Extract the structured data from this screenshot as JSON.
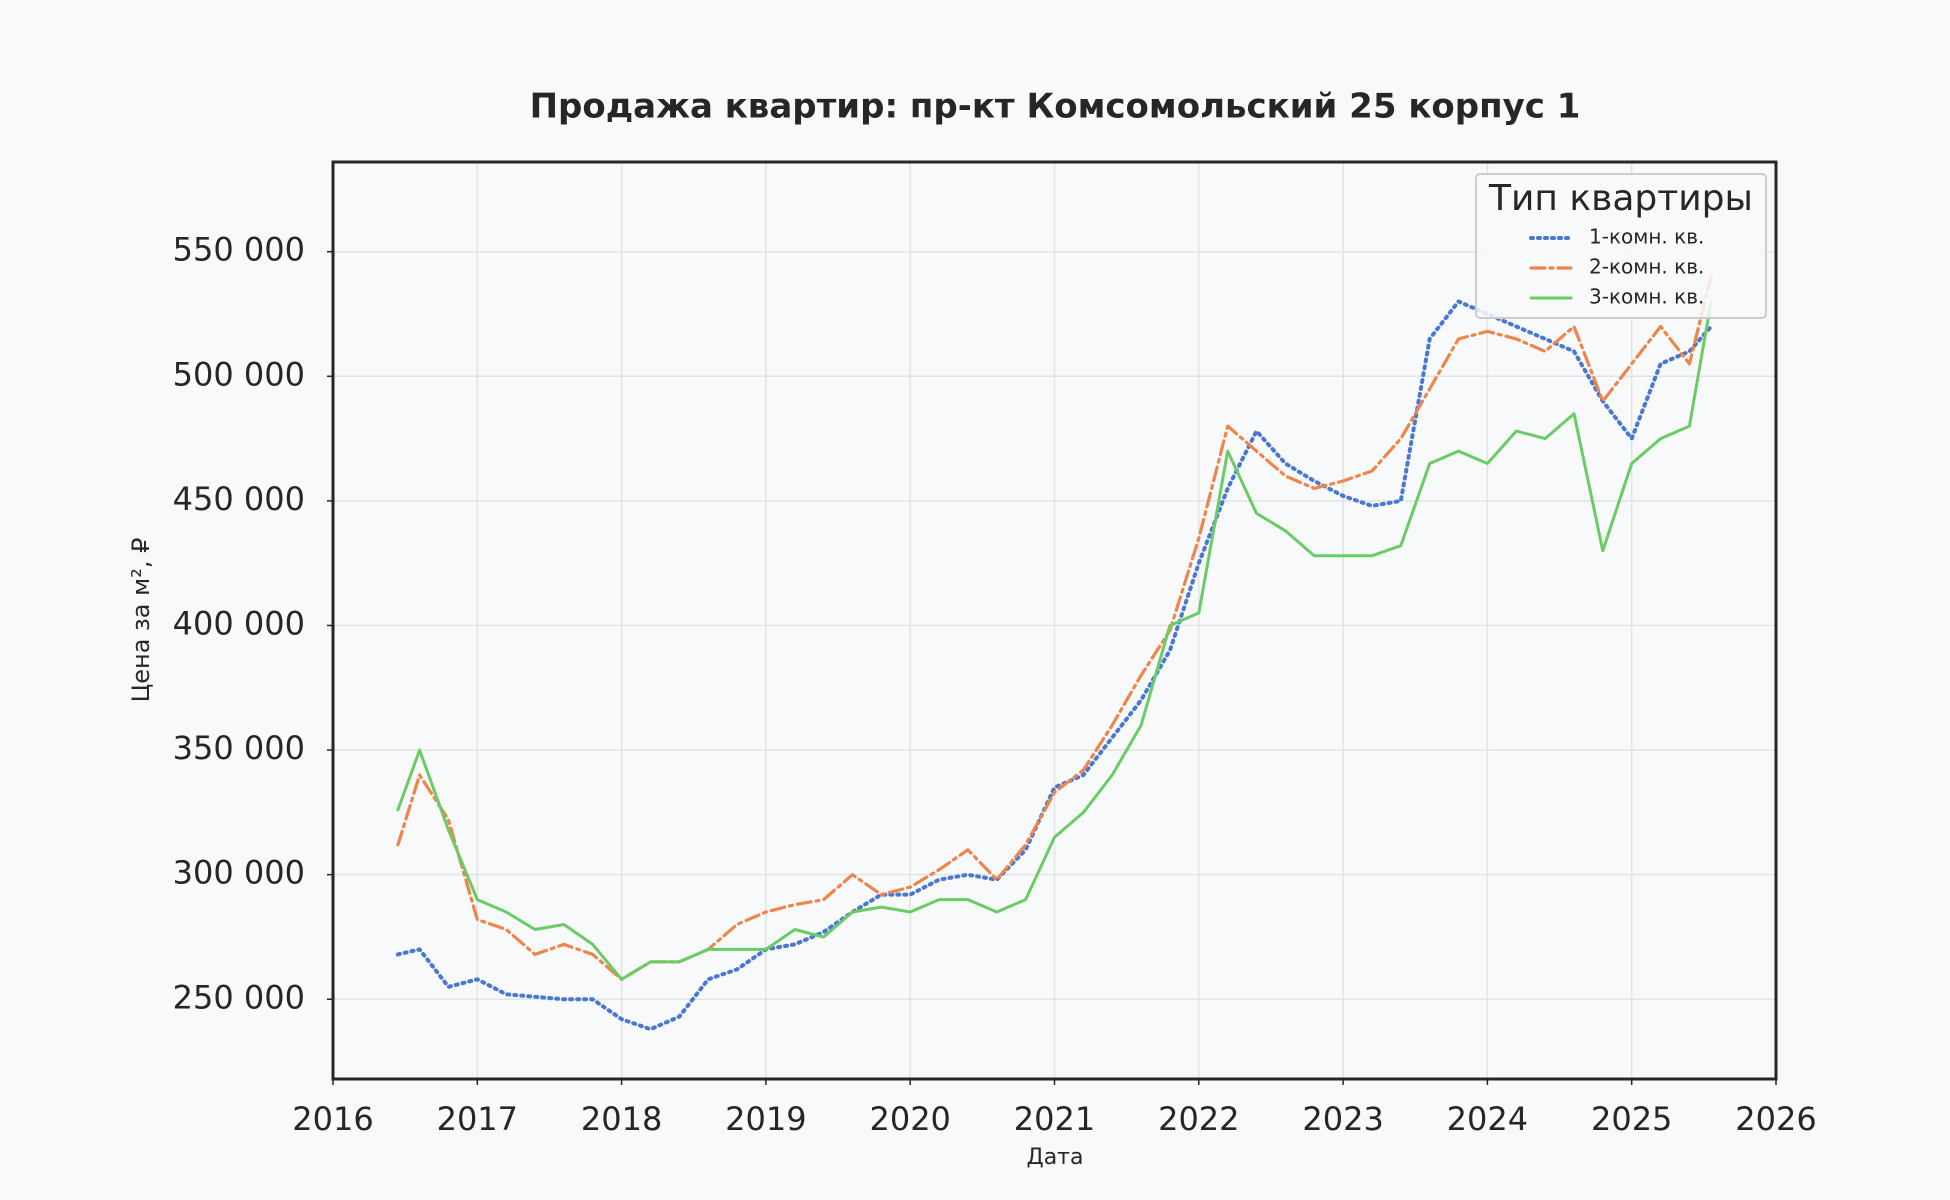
{
  "chart_data": {
    "type": "line",
    "title": "Продажа квартир: пр-кт Комсомольский 25 корпус 1",
    "x_label": "Дата",
    "y_label": "Цена за м², ₽",
    "legend_title": "Тип квартиры",
    "legend": "upper right",
    "grid": true,
    "xlim": [
      2016,
      2026
    ],
    "xticks": [
      2016,
      2017,
      2018,
      2019,
      2020,
      2021,
      2022,
      2023,
      2024,
      2025,
      2026
    ],
    "ylim": [
      218000,
      586000
    ],
    "yticks": [
      {
        "value": 250000,
        "label": "250 000"
      },
      {
        "value": 300000,
        "label": "300 000"
      },
      {
        "value": 350000,
        "label": "350 000"
      },
      {
        "value": 400000,
        "label": "400 000"
      },
      {
        "value": 450000,
        "label": "450 000"
      },
      {
        "value": 500000,
        "label": "500 000"
      },
      {
        "value": 550000,
        "label": "550 000"
      }
    ],
    "x": [
      2016.45,
      2016.6,
      2016.8,
      2017.0,
      2017.2,
      2017.4,
      2017.6,
      2017.8,
      2018.0,
      2018.2,
      2018.4,
      2018.6,
      2018.8,
      2019.0,
      2019.2,
      2019.4,
      2019.6,
      2019.8,
      2020.0,
      2020.2,
      2020.4,
      2020.6,
      2020.8,
      2021.0,
      2021.2,
      2021.4,
      2021.6,
      2021.8,
      2022.0,
      2022.2,
      2022.4,
      2022.6,
      2022.8,
      2023.0,
      2023.2,
      2023.4,
      2023.6,
      2023.8,
      2024.0,
      2024.2,
      2024.4,
      2024.6,
      2024.8,
      2025.0,
      2025.2,
      2025.4,
      2025.55
    ],
    "series": [
      {
        "name": "1-комн. кв.",
        "color": "#4878d0",
        "style": "dotted",
        "values": [
          268000,
          270000,
          255000,
          258000,
          252000,
          251000,
          250000,
          250000,
          242000,
          238000,
          243000,
          258000,
          262000,
          270000,
          272000,
          277000,
          285000,
          292000,
          292000,
          298000,
          300000,
          298000,
          310000,
          335000,
          340000,
          355000,
          370000,
          390000,
          425000,
          455000,
          478000,
          465000,
          458000,
          452000,
          448000,
          450000,
          515000,
          530000,
          525000,
          520000,
          515000,
          510000,
          490000,
          475000,
          505000,
          510000,
          520000
        ]
      },
      {
        "name": "2-комн. кв.",
        "color": "#ee854a",
        "style": "dashdot",
        "values": [
          312000,
          340000,
          322000,
          282000,
          278000,
          268000,
          272000,
          268000,
          258000,
          265000,
          265000,
          270000,
          280000,
          285000,
          288000,
          290000,
          300000,
          292000,
          295000,
          302000,
          310000,
          298000,
          312000,
          333000,
          342000,
          360000,
          380000,
          398000,
          435000,
          480000,
          470000,
          460000,
          455000,
          458000,
          462000,
          475000,
          495000,
          515000,
          518000,
          515000,
          510000,
          520000,
          490000,
          505000,
          520000,
          505000,
          540000
        ]
      },
      {
        "name": "3-комн. кв.",
        "color": "#6acc64",
        "style": "solid",
        "values": [
          326000,
          350000,
          318000,
          290000,
          285000,
          278000,
          280000,
          272000,
          258000,
          265000,
          265000,
          270000,
          270000,
          270000,
          278000,
          275000,
          285000,
          287000,
          285000,
          290000,
          290000,
          285000,
          290000,
          315000,
          325000,
          340000,
          360000,
          400000,
          405000,
          470000,
          445000,
          438000,
          428000,
          428000,
          428000,
          432000,
          465000,
          470000,
          465000,
          478000,
          475000,
          485000,
          430000,
          465000,
          475000,
          480000,
          530000
        ]
      }
    ]
  }
}
